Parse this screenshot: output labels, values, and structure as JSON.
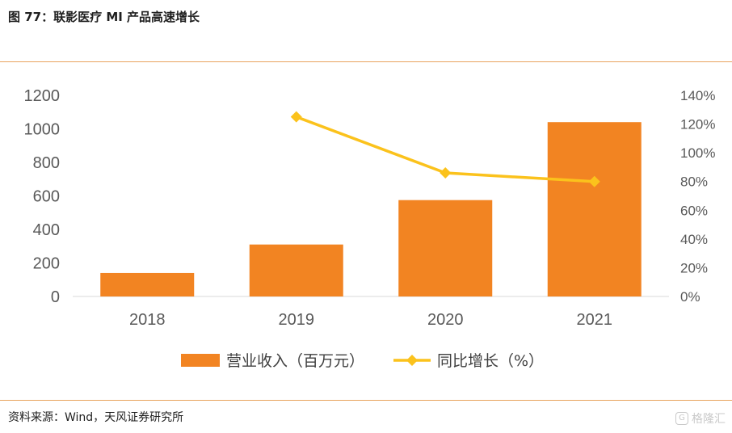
{
  "figure": {
    "title": "图 77：联影医疗 MI 产品高速增长",
    "source": "资料来源：Wind，天风证券研究所",
    "watermark": "格隆汇"
  },
  "colors": {
    "bar": "#f28422",
    "line": "#fbc21c",
    "rule": "#e8a35e",
    "tick_text": "#595959",
    "grid": "#d9d9d9"
  },
  "chart_data": {
    "type": "bar",
    "categories": [
      "2018",
      "2019",
      "2020",
      "2021"
    ],
    "series": [
      {
        "name": "营业收入（百万元）",
        "type": "bar",
        "axis": "left",
        "values": [
          140,
          310,
          575,
          1040
        ]
      },
      {
        "name": "同比增长（%）",
        "type": "line",
        "axis": "right",
        "marker": "diamond",
        "values": [
          null,
          1.25,
          0.86,
          0.8
        ]
      }
    ],
    "left_axis": {
      "ylim": [
        0,
        1200
      ],
      "ticks": [
        0,
        200,
        400,
        600,
        800,
        1000,
        1200
      ]
    },
    "right_axis": {
      "ylim": [
        0,
        1.4
      ],
      "ticks": [
        "0%",
        "20%",
        "40%",
        "60%",
        "80%",
        "100%",
        "120%",
        "140%"
      ]
    },
    "legend": {
      "placement": "bottom",
      "items": [
        "营业收入（百万元）",
        "同比增长（%）"
      ]
    },
    "grid": false
  }
}
